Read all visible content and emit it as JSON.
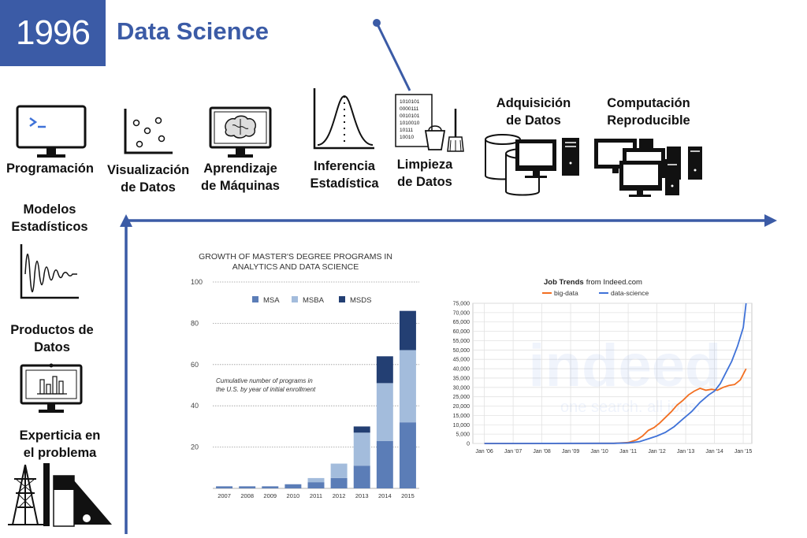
{
  "header": {
    "year": "1996",
    "title": "Data Science"
  },
  "skills": {
    "programacion": "Programación",
    "visualizacion": [
      "Visualización",
      "de Datos"
    ],
    "aprendizaje": [
      "Aprendizaje",
      "de Máquinas"
    ],
    "inferencia": [
      "Inferencia",
      "Estadística"
    ],
    "limpieza": [
      "Limpieza",
      "de Datos"
    ],
    "adquisicion": [
      "Adquisición",
      "de Datos"
    ],
    "computacion": [
      "Computación",
      "Reproducible"
    ],
    "modelos": [
      "Modelos",
      "Estadísticos"
    ],
    "productos": [
      "Productos de",
      "Datos"
    ],
    "experticia": [
      "Experticia en",
      "el problema"
    ]
  },
  "binary_text": [
    "1010101",
    "0000111",
    "0010101",
    "1010010",
    "10111",
    "10010"
  ],
  "colors": {
    "brand": "#3b5ba6",
    "msa": "#5b7db7",
    "msba": "#a3bcdc",
    "msds": "#233f73",
    "big_data": "#f26f21",
    "data_science": "#3f72d8"
  },
  "chart_data": [
    {
      "type": "bar",
      "stacked": true,
      "title": "GROWTH OF MASTER'S DEGREE PROGRAMS IN ANALYTICS AND DATA SCIENCE",
      "annotation": "Cumulative number of programs in the U.S. by year of initial enrollment",
      "categories": [
        "2007",
        "2008",
        "2009",
        "2010",
        "2011",
        "2012",
        "2013",
        "2014",
        "2015"
      ],
      "series": [
        {
          "name": "MSA",
          "values": [
            1,
            1,
            1,
            2,
            3,
            5,
            11,
            23,
            32
          ]
        },
        {
          "name": "MSBA",
          "values": [
            0,
            0,
            0,
            0,
            2,
            7,
            16,
            28,
            35
          ]
        },
        {
          "name": "MSDS",
          "values": [
            0,
            0,
            0,
            0,
            0,
            0,
            3,
            13,
            19
          ]
        }
      ],
      "ylim": [
        0,
        100
      ],
      "yticks": [
        "20",
        "40",
        "60",
        "80",
        "100"
      ],
      "grid": true,
      "legend": "top"
    },
    {
      "type": "line",
      "title_bold": "Job Trends",
      "title_rest": "from Indeed.com",
      "watermark": "indeed",
      "watermark_sub": "one search. all jobs.",
      "x_ticks": [
        "Jan '06",
        "Jan '07",
        "Jan '08",
        "Jan '09",
        "Jan '10",
        "Jan '11",
        "Jan '12",
        "Jan '13",
        "Jan '14",
        "Jan '15"
      ],
      "y_ticks": [
        "0",
        "5,000",
        "10,000",
        "15,000",
        "20,000",
        "25,000",
        "30,000",
        "35,000",
        "40,000",
        "45,000",
        "50,000",
        "55,000",
        "60,000",
        "65,000",
        "70,000",
        "75,000"
      ],
      "ylim": [
        0,
        75000
      ],
      "xlim": [
        2005.6,
        2015.3
      ],
      "grid": true,
      "legend": "top",
      "series": [
        {
          "name": "big-data",
          "x": [
            2006,
            2010.5,
            2011,
            2011.3,
            2011.5,
            2011.7,
            2011.9,
            2012.1,
            2012.3,
            2012.5,
            2012.7,
            2012.9,
            2013.1,
            2013.3,
            2013.5,
            2013.7,
            2013.9,
            2014.1,
            2014.3,
            2014.5,
            2014.7,
            2014.9,
            2015.1
          ],
          "y": [
            0,
            100,
            500,
            2000,
            4000,
            7000,
            8500,
            11000,
            14000,
            17000,
            20500,
            23000,
            26000,
            28000,
            29500,
            28500,
            29000,
            28500,
            30000,
            31000,
            31500,
            34000,
            40000
          ]
        },
        {
          "name": "data-science",
          "x": [
            2006,
            2010.5,
            2011,
            2011.4,
            2011.7,
            2012,
            2012.3,
            2012.6,
            2012.9,
            2013.2,
            2013.5,
            2013.8,
            2014,
            2014.2,
            2014.4,
            2014.6,
            2014.8,
            2015,
            2015.1
          ],
          "y": [
            0,
            100,
            300,
            1000,
            2500,
            4000,
            6000,
            9000,
            13000,
            17000,
            22000,
            26000,
            28000,
            32000,
            38000,
            44000,
            52000,
            62000,
            75000
          ]
        }
      ]
    }
  ]
}
